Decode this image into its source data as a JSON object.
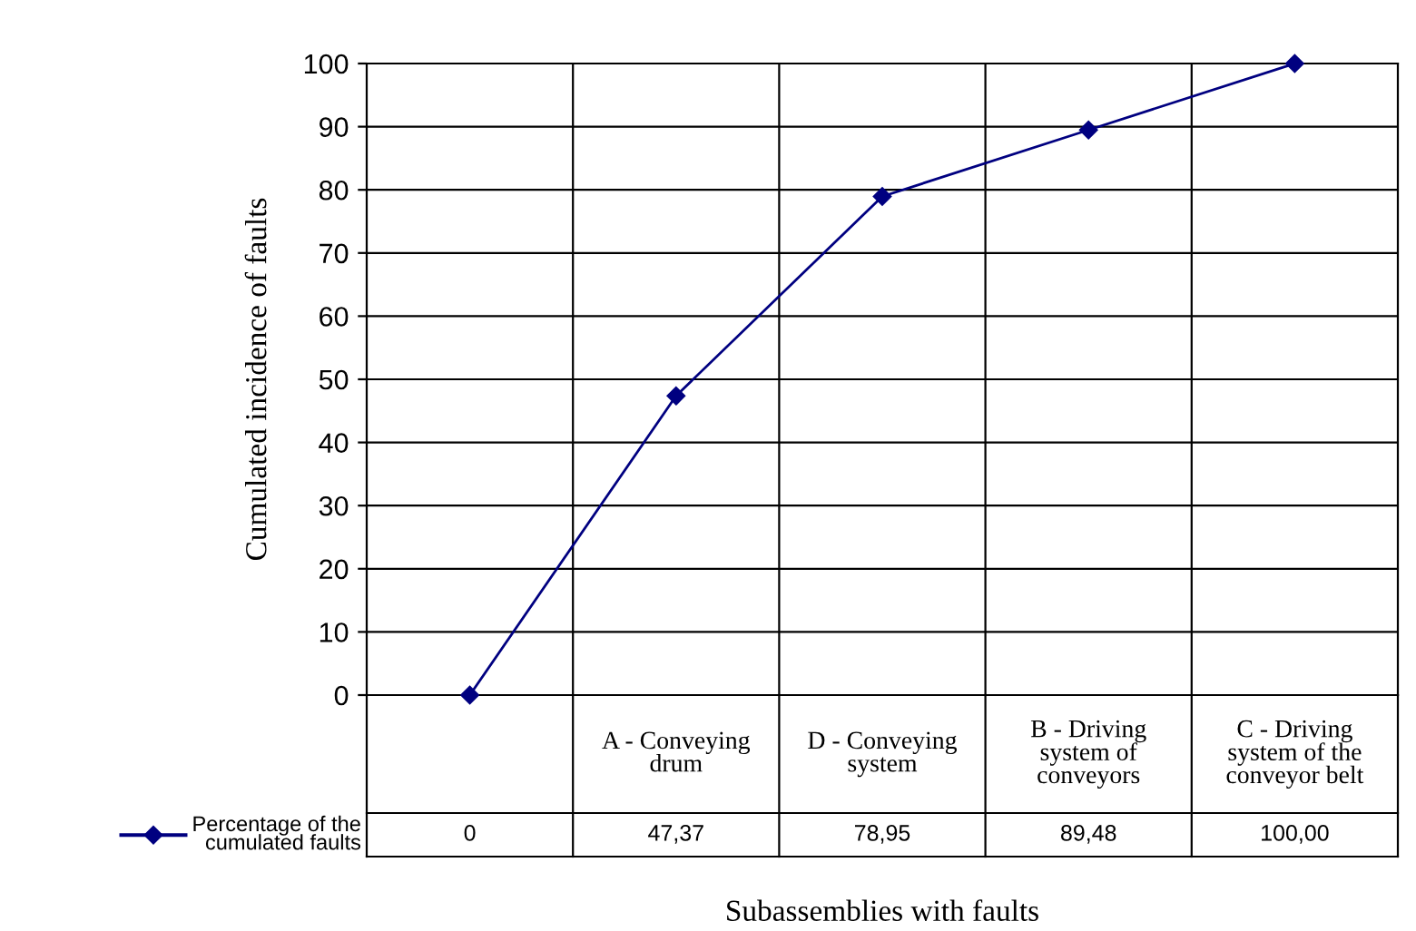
{
  "chart_data": {
    "type": "line",
    "xlabel": "Subassemblies with faults",
    "ylabel": "Cumulated incidence of faults",
    "categories": [
      null,
      "A - Conveying\ndrum",
      "D - Conveying\nsystem",
      "B - Driving\nsystem of\nconveyors",
      "C - Driving\nsystem of the\nconveyor belt"
    ],
    "series": [
      {
        "name": "Percentage of the\ncumulated faults",
        "color": "#000080",
        "values": [
          0,
          47.37,
          78.95,
          89.48,
          100
        ],
        "value_labels": [
          "0",
          "47,37",
          "78,95",
          "89,48",
          "100,00"
        ]
      }
    ],
    "ylim": [
      0,
      100
    ],
    "yticks": [
      0,
      10,
      20,
      30,
      40,
      50,
      60,
      70,
      80,
      90,
      100
    ],
    "grid": true,
    "legend": "bottom left",
    "marker": "diamond",
    "line_style": "solid"
  }
}
